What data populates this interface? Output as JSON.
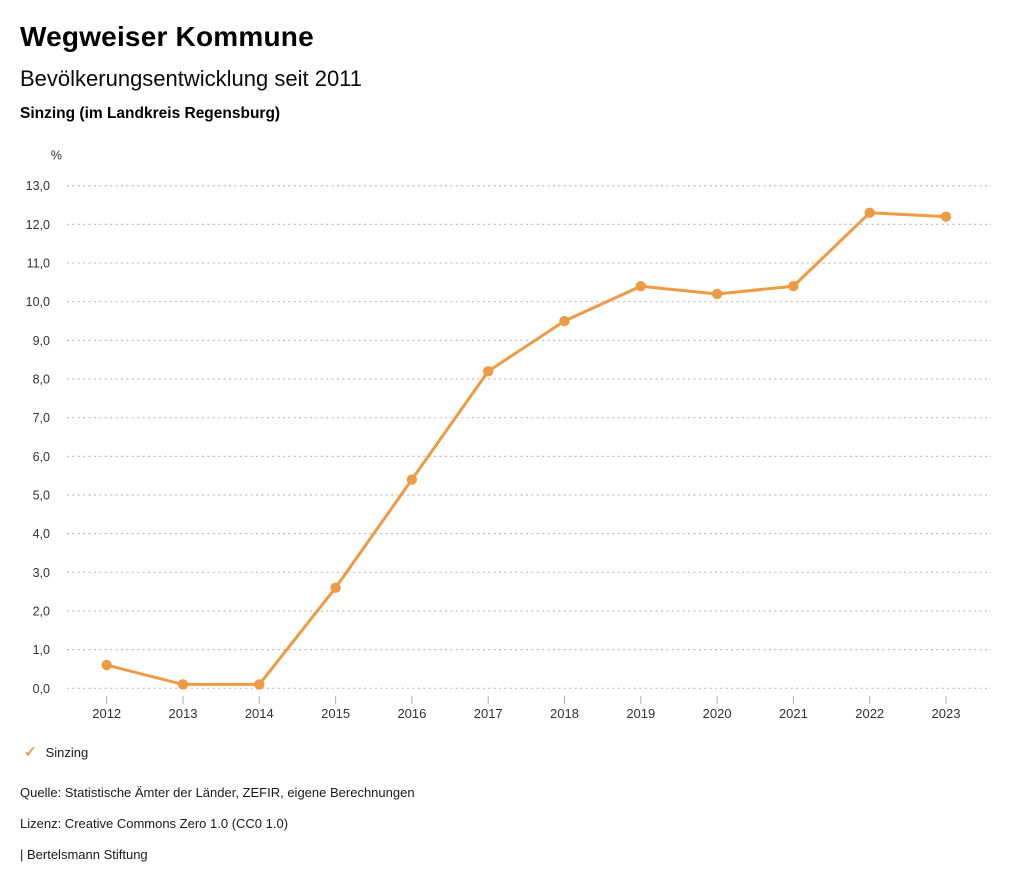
{
  "header": {
    "title": "Wegweiser Kommune",
    "subtitle": "Bevölkerungsentwicklung seit 2011",
    "region": "Sinzing (im Landkreis Regensburg)"
  },
  "chart_data": {
    "type": "line",
    "title": "Bevölkerungsentwicklung seit 2011",
    "subtitle": "Sinzing (im Landkreis Regensburg)",
    "unit_label": "%",
    "categories": [
      "2012",
      "2013",
      "2014",
      "2015",
      "2016",
      "2017",
      "2018",
      "2019",
      "2020",
      "2021",
      "2022",
      "2023"
    ],
    "series": [
      {
        "name": "Sinzing",
        "values": [
          0.6,
          0.1,
          0.1,
          2.6,
          5.4,
          8.2,
          9.5,
          10.4,
          10.2,
          10.4,
          12.3,
          12.2
        ]
      }
    ],
    "xlabel": "",
    "ylabel": "%",
    "ylim": [
      0,
      13
    ],
    "ytick_step": 1,
    "ytick_labels": [
      "0,0",
      "1,0",
      "2,0",
      "3,0",
      "4,0",
      "5,0",
      "6,0",
      "7,0",
      "8,0",
      "9,0",
      "10,0",
      "11,0",
      "12,0",
      "13,0"
    ],
    "grid": "horizontal-dotted",
    "legend_position": "bottom-left",
    "marker": "circle"
  },
  "legend": {
    "check_icon": "✓",
    "label": "Sinzing"
  },
  "footer": {
    "source": "Quelle: Statistische Ämter der Länder, ZEFIR, eigene Berechnungen",
    "license": "Lizenz: Creative Commons Zero 1.0 (CC0 1.0)",
    "attribution": "| Bertelsmann Stiftung"
  },
  "colors": {
    "accent": "#EE9B45",
    "grid": "#bdbdbd",
    "tick": "#b0b0b0",
    "axis_text": "#333333",
    "text": "#1a1a1a"
  }
}
